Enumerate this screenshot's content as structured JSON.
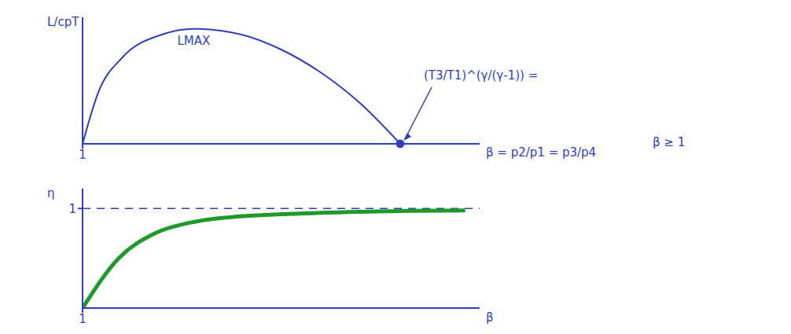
{
  "chart_data": [
    {
      "type": "line",
      "y_label": "L/cpT",
      "x_label": "β = p2/p1 = p3/p4",
      "note": "β ≥ 1",
      "x": [
        1,
        1.2,
        1.5,
        2,
        2.4,
        3,
        3.5,
        4,
        4.5,
        5
      ],
      "values": [
        0,
        0.45,
        0.75,
        0.95,
        1.0,
        0.95,
        0.82,
        0.62,
        0.35,
        0
      ],
      "color": "#2b3fc0",
      "xlim": [
        1,
        6
      ],
      "xticks": [
        1
      ],
      "ylim": [
        0,
        1.1
      ],
      "yticks": [],
      "tick_labels": "x",
      "annotations": [
        {
          "text": "LMAX",
          "x": 2.4,
          "y": 1.0
        },
        {
          "text": "(T3/T1)^(γ/(γ-1)) =",
          "x": 5,
          "y": 0
        }
      ]
    },
    {
      "type": "line",
      "y_label": "η",
      "x_label": "β",
      "x": [
        1,
        1.5,
        2,
        2.5,
        3,
        4,
        5,
        6.3
      ],
      "values": [
        0,
        0.5,
        0.75,
        0.86,
        0.91,
        0.95,
        0.97,
        0.98
      ],
      "color": "#1f9a2a",
      "xlim": [
        1,
        6.5
      ],
      "xticks": [
        1
      ],
      "ylim": [
        0,
        1.2
      ],
      "yticks": [
        1
      ],
      "asymptote": 1
    }
  ]
}
